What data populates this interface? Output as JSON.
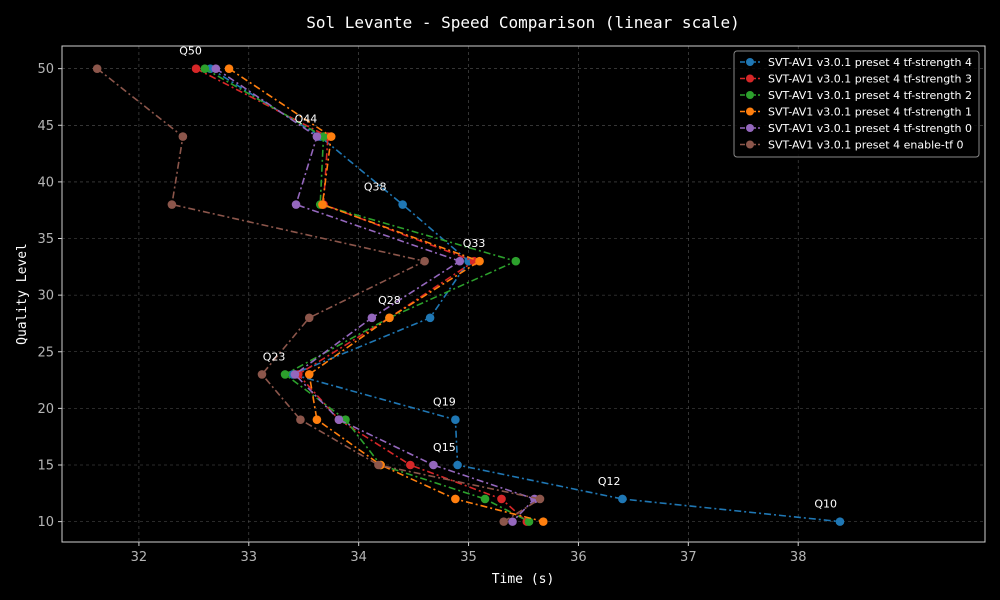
{
  "chart_data": {
    "type": "line",
    "title": "Sol Levante - Speed Comparison (linear scale)",
    "xlabel": "Time (s)",
    "ylabel": "Quality Level",
    "xlim": [
      31.3,
      39.7
    ],
    "ylim": [
      8.2,
      52
    ],
    "xticks": [
      32,
      33,
      34,
      35,
      36,
      37,
      38
    ],
    "yticks": [
      10,
      15,
      20,
      25,
      30,
      35,
      40,
      45,
      50
    ],
    "grid": true,
    "legend_position": "top-right",
    "series": [
      {
        "name": "SVT-AV1 v3.0.1 preset 4 tf-strength 4",
        "color": "#1f77b4",
        "points": [
          [
            32.65,
            50
          ],
          [
            33.65,
            44
          ],
          [
            34.4,
            38
          ],
          [
            35.0,
            33
          ],
          [
            34.65,
            28
          ],
          [
            33.4,
            23
          ],
          [
            34.88,
            19
          ],
          [
            34.9,
            15
          ],
          [
            36.4,
            12
          ],
          [
            38.38,
            10
          ]
        ]
      },
      {
        "name": "SVT-AV1 v3.0.1 preset 4 tf-strength 3",
        "color": "#d62728",
        "points": [
          [
            32.52,
            50
          ],
          [
            33.72,
            44
          ],
          [
            33.68,
            38
          ],
          [
            35.05,
            33
          ],
          [
            34.28,
            28
          ],
          [
            33.45,
            23
          ],
          [
            33.82,
            19
          ],
          [
            34.47,
            15
          ],
          [
            35.3,
            12
          ],
          [
            35.53,
            10
          ]
        ]
      },
      {
        "name": "SVT-AV1 v3.0.1 preset 4 tf-strength 2",
        "color": "#2ca02c",
        "points": [
          [
            32.6,
            50
          ],
          [
            33.68,
            44
          ],
          [
            33.65,
            38
          ],
          [
            35.43,
            33
          ],
          [
            34.28,
            28
          ],
          [
            33.33,
            23
          ],
          [
            33.88,
            19
          ],
          [
            34.2,
            15
          ],
          [
            35.15,
            12
          ],
          [
            35.55,
            10
          ]
        ]
      },
      {
        "name": "SVT-AV1 v3.0.1 preset 4 tf-strength 1",
        "color": "#ff7f0e",
        "points": [
          [
            32.82,
            50
          ],
          [
            33.75,
            44
          ],
          [
            33.67,
            38
          ],
          [
            35.1,
            33
          ],
          [
            34.28,
            28
          ],
          [
            33.55,
            23
          ],
          [
            33.62,
            19
          ],
          [
            34.2,
            15
          ],
          [
            34.88,
            12
          ],
          [
            35.68,
            10
          ]
        ]
      },
      {
        "name": "SVT-AV1 v3.0.1 preset 4 tf-strength 0",
        "color": "#9467bd",
        "points": [
          [
            32.7,
            50
          ],
          [
            33.62,
            44
          ],
          [
            33.43,
            38
          ],
          [
            34.92,
            33
          ],
          [
            34.12,
            28
          ],
          [
            33.42,
            23
          ],
          [
            33.82,
            19
          ],
          [
            34.68,
            15
          ],
          [
            35.6,
            12
          ],
          [
            35.4,
            10
          ]
        ]
      },
      {
        "name": "SVT-AV1 v3.0.1 preset 4 enable-tf 0",
        "color": "#8c564b",
        "points": [
          [
            31.62,
            50
          ],
          [
            32.4,
            44
          ],
          [
            32.3,
            38
          ],
          [
            34.6,
            33
          ],
          [
            33.55,
            28
          ],
          [
            33.12,
            23
          ],
          [
            33.47,
            19
          ],
          [
            34.18,
            15
          ],
          [
            35.65,
            12
          ],
          [
            35.32,
            10
          ]
        ]
      }
    ],
    "annotations": [
      {
        "text": "Q50",
        "x": 32.47,
        "y": 50
      },
      {
        "text": "Q44",
        "x": 33.52,
        "y": 44
      },
      {
        "text": "Q38",
        "x": 34.15,
        "y": 38
      },
      {
        "text": "Q33",
        "x": 35.05,
        "y": 33
      },
      {
        "text": "Q28",
        "x": 34.28,
        "y": 28
      },
      {
        "text": "Q23",
        "x": 33.23,
        "y": 23
      },
      {
        "text": "Q19",
        "x": 34.78,
        "y": 19
      },
      {
        "text": "Q15",
        "x": 34.78,
        "y": 15
      },
      {
        "text": "Q12",
        "x": 36.28,
        "y": 12
      },
      {
        "text": "Q10",
        "x": 38.25,
        "y": 10
      }
    ]
  }
}
